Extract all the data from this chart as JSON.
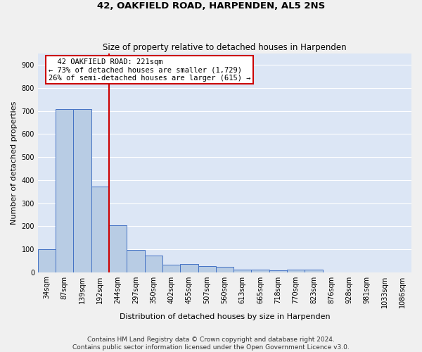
{
  "title": "42, OAKFIELD ROAD, HARPENDEN, AL5 2NS",
  "subtitle": "Size of property relative to detached houses in Harpenden",
  "xlabel": "Distribution of detached houses by size in Harpenden",
  "ylabel": "Number of detached properties",
  "footer_line1": "Contains HM Land Registry data © Crown copyright and database right 2024.",
  "footer_line2": "Contains public sector information licensed under the Open Government Licence v3.0.",
  "categories": [
    "34sqm",
    "87sqm",
    "139sqm",
    "192sqm",
    "244sqm",
    "297sqm",
    "350sqm",
    "402sqm",
    "455sqm",
    "507sqm",
    "560sqm",
    "613sqm",
    "665sqm",
    "718sqm",
    "770sqm",
    "823sqm",
    "876sqm",
    "928sqm",
    "981sqm",
    "1033sqm",
    "1086sqm"
  ],
  "values": [
    100,
    707,
    707,
    372,
    205,
    97,
    72,
    33,
    35,
    27,
    22,
    10,
    10,
    7,
    10,
    10,
    0,
    0,
    0,
    0,
    0
  ],
  "bar_color": "#b8cce4",
  "bar_edge_color": "#4472c4",
  "vline_x": 3.5,
  "vline_color": "#cc0000",
  "annotation_line1": "  42 OAKFIELD ROAD: 221sqm",
  "annotation_line2": "← 73% of detached houses are smaller (1,729)",
  "annotation_line3": "26% of semi-detached houses are larger (615) →",
  "box_edge_color": "#cc0000",
  "ylim": [
    0,
    950
  ],
  "yticks": [
    0,
    100,
    200,
    300,
    400,
    500,
    600,
    700,
    800,
    900
  ],
  "background_color": "#dce6f5",
  "grid_color": "#ffffff",
  "title_fontsize": 9.5,
  "subtitle_fontsize": 8.5,
  "axis_label_fontsize": 8,
  "tick_fontsize": 7,
  "footer_fontsize": 6.5,
  "ann_fontsize": 7.5
}
